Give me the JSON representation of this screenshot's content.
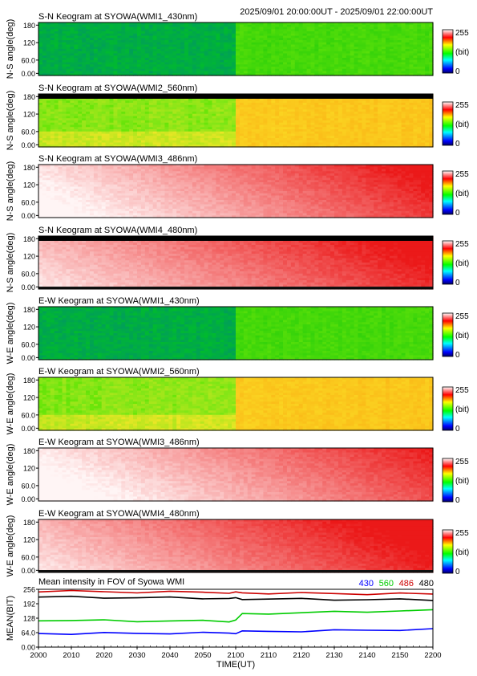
{
  "header": {
    "time_range": "2025/09/01 20:00:00UT - 2025/09/01 22:00:00UT"
  },
  "colorbar": {
    "max_label": "255",
    "min_label": "0",
    "unit_label": "(bit)"
  },
  "yticks": [
    "180",
    "120",
    "60.0",
    "0.00"
  ],
  "panels": [
    {
      "title": "S-N Keogram at SYOWA(WMI1_430nm)",
      "ylabel": "N-S angle(deg)",
      "channel": "430",
      "scheme": "blue",
      "base": 45,
      "jump": 48,
      "trend": 0,
      "dark_top": false,
      "dark_bottom": false
    },
    {
      "title": "S-N Keogram at SYOWA(WMI2_560nm)",
      "ylabel": "N-S angle(deg)",
      "channel": "560",
      "scheme": "green",
      "base": 125,
      "jump": 70,
      "trend": 10,
      "dark_top": true,
      "dark_bottom": false
    },
    {
      "title": "S-N Keogram at SYOWA(WMI3_486nm)",
      "ylabel": "N-S angle(deg)",
      "channel": "486",
      "scheme": "red",
      "base": 0.1,
      "jump": 0,
      "trend": 0.75,
      "dark_top": false,
      "dark_bottom": false
    },
    {
      "title": "S-N Keogram at SYOWA(WMI4_480nm)",
      "ylabel": "N-S angle(deg)",
      "channel": "480",
      "scheme": "red",
      "base": 0.3,
      "jump": 0,
      "trend": 0.6,
      "dark_top": true,
      "dark_bottom": true
    },
    {
      "title": "E-W Keogram at SYOWA(WMI1_430nm)",
      "ylabel": "W-E angle(deg)",
      "channel": "430",
      "scheme": "blue",
      "base": 45,
      "jump": 48,
      "trend": 0,
      "dark_top": false,
      "dark_bottom": false
    },
    {
      "title": "E-W Keogram at SYOWA(WMI2_560nm)",
      "ylabel": "W-E angle(deg)",
      "channel": "560",
      "scheme": "green",
      "base": 125,
      "jump": 70,
      "trend": 10,
      "dark_top": false,
      "dark_bottom": false
    },
    {
      "title": "E-W Keogram at SYOWA(WMI3_486nm)",
      "ylabel": "W-E angle(deg)",
      "channel": "486",
      "scheme": "red",
      "base": 0.05,
      "jump": 0,
      "trend": 0.7,
      "dark_top": false,
      "dark_bottom": false
    },
    {
      "title": "E-W Keogram at SYOWA(WMI4_480nm)",
      "ylabel": "W-E angle(deg)",
      "channel": "480",
      "scheme": "red",
      "base": 0.3,
      "jump": 0,
      "trend": 0.65,
      "dark_top": false,
      "dark_bottom": true
    }
  ],
  "chart_data": {
    "type": "line",
    "title": "Mean intensity in FOV of Syowa WMI",
    "xlabel": "TIME(UT)",
    "ylabel": "MEAN(BIT)",
    "x_ticks": [
      "2000",
      "2010",
      "2020",
      "2030",
      "2040",
      "2050",
      "2100",
      "2110",
      "2120",
      "2130",
      "2140",
      "2150",
      "2200"
    ],
    "y_ticks": [
      "256",
      "192",
      "128",
      "64.0",
      "0.00"
    ],
    "ylim": [
      0,
      256
    ],
    "x": [
      "2000",
      "2010",
      "2020",
      "2030",
      "2040",
      "2050",
      "2058",
      "2100",
      "2102",
      "2110",
      "2120",
      "2130",
      "2140",
      "2150",
      "2200"
    ],
    "series": [
      {
        "name": "430",
        "color": "#0000ff",
        "values": [
          60,
          60,
          61,
          61,
          62,
          62,
          62,
          63,
          68,
          70,
          71,
          73,
          75,
          77,
          78
        ]
      },
      {
        "name": "560",
        "color": "#00cc00",
        "values": [
          120,
          118,
          117,
          116,
          116,
          115,
          115,
          120,
          145,
          150,
          152,
          155,
          158,
          160,
          162
        ]
      },
      {
        "name": "486",
        "color": "#cc0000",
        "values": [
          248,
          247,
          245,
          244,
          244,
          243,
          242,
          241,
          240,
          239,
          238,
          237,
          236,
          236,
          235
        ]
      },
      {
        "name": "480",
        "color": "#000000",
        "values": [
          222,
          221,
          220,
          219,
          218,
          217,
          216,
          215,
          214,
          213,
          212,
          211,
          210,
          210,
          210
        ]
      }
    ],
    "legend": [
      "430",
      "560",
      "486",
      "480"
    ],
    "legend_position": "top-right",
    "grid": false
  }
}
